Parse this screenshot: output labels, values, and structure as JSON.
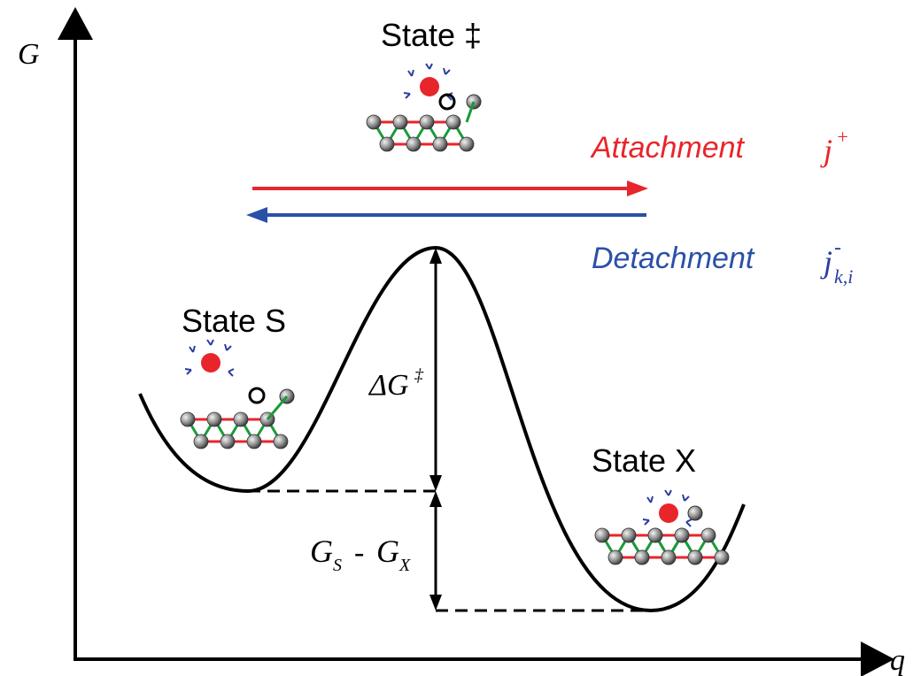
{
  "axes": {
    "y_label": "G",
    "x_label": "q"
  },
  "states": [
    {
      "label": "State ‡"
    },
    {
      "label": "State S"
    },
    {
      "label": "State X"
    }
  ],
  "arrows": {
    "attachment": {
      "label": "Attachment",
      "symbol": "j",
      "superscript": "+"
    },
    "detachment": {
      "label": "Detachment",
      "symbol": "j",
      "superscript": "-",
      "subscript": "k,i"
    }
  },
  "annotations": {
    "barrier": {
      "symbol": "ΔG",
      "superscript": "‡"
    },
    "difference": {
      "left": "G",
      "left_sub": "S",
      "operator": "-",
      "right": "G",
      "right_sub": "X"
    }
  }
}
